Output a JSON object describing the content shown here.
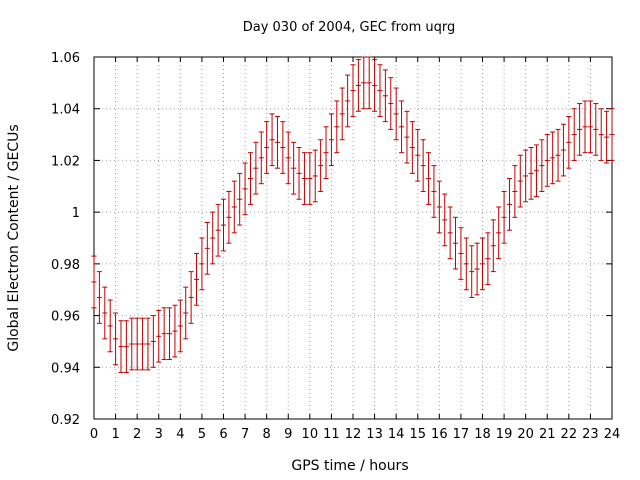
{
  "chart_data": {
    "type": "line",
    "title": "Day 030 of 2004, GEC from uqrg",
    "xlabel": "GPS time / hours",
    "ylabel": "Global Electron Content / GECUs",
    "xlim": [
      0,
      24
    ],
    "ylim": [
      0.92,
      1.06
    ],
    "grid": true,
    "error_bar_color": "#c00000",
    "grid_color": "#a0a0a0",
    "x_ticks": [
      "0",
      "1",
      "2",
      "3",
      "4",
      "5",
      "6",
      "7",
      "8",
      "9",
      "10",
      "11",
      "12",
      "13",
      "14",
      "15",
      "16",
      "17",
      "18",
      "19",
      "20",
      "21",
      "22",
      "23",
      "24"
    ],
    "y_ticks": [
      "0.92",
      "0.94",
      "0.96",
      "0.98",
      "1",
      "1.02",
      "1.04",
      "1.06"
    ],
    "series": [
      {
        "name": "GEC",
        "x": [
          0,
          0.25,
          0.5,
          0.75,
          1,
          1.25,
          1.5,
          1.75,
          2,
          2.25,
          2.5,
          2.75,
          3,
          3.25,
          3.5,
          3.75,
          4,
          4.25,
          4.5,
          4.75,
          5,
          5.25,
          5.5,
          5.75,
          6,
          6.25,
          6.5,
          6.75,
          7,
          7.25,
          7.5,
          7.75,
          8,
          8.25,
          8.5,
          8.75,
          9,
          9.25,
          9.5,
          9.75,
          10,
          10.25,
          10.5,
          10.75,
          11,
          11.25,
          11.5,
          11.75,
          12,
          12.25,
          12.5,
          12.75,
          13,
          13.25,
          13.5,
          13.75,
          14,
          14.25,
          14.5,
          14.75,
          15,
          15.25,
          15.5,
          15.75,
          16,
          16.25,
          16.5,
          16.75,
          17,
          17.25,
          17.5,
          17.75,
          18,
          18.25,
          18.5,
          18.75,
          19,
          19.25,
          19.5,
          19.75,
          20,
          20.25,
          20.5,
          20.75,
          21,
          21.25,
          21.5,
          21.75,
          22,
          22.25,
          22.5,
          22.75,
          23,
          23.25,
          23.5,
          23.75,
          24
        ],
        "y": [
          0.973,
          0.967,
          0.961,
          0.956,
          0.951,
          0.948,
          0.948,
          0.949,
          0.949,
          0.949,
          0.949,
          0.95,
          0.952,
          0.953,
          0.953,
          0.954,
          0.956,
          0.961,
          0.967,
          0.974,
          0.98,
          0.986,
          0.99,
          0.993,
          0.995,
          0.998,
          1.002,
          1.005,
          1.009,
          1.013,
          1.017,
          1.021,
          1.025,
          1.028,
          1.027,
          1.025,
          1.021,
          1.017,
          1.015,
          1.013,
          1.013,
          1.014,
          1.018,
          1.023,
          1.028,
          1.033,
          1.038,
          1.043,
          1.047,
          1.049,
          1.05,
          1.05,
          1.049,
          1.047,
          1.045,
          1.042,
          1.038,
          1.033,
          1.029,
          1.025,
          1.022,
          1.018,
          1.013,
          1.008,
          1.002,
          0.997,
          0.992,
          0.988,
          0.984,
          0.98,
          0.977,
          0.978,
          0.98,
          0.982,
          0.987,
          0.992,
          0.998,
          1.003,
          1.008,
          1.012,
          1.014,
          1.015,
          1.016,
          1.018,
          1.02,
          1.021,
          1.022,
          1.024,
          1.027,
          1.03,
          1.032,
          1.033,
          1.033,
          1.032,
          1.03,
          1.029,
          1.03
        ],
        "errors": [
          0.01,
          0.01,
          0.01,
          0.01,
          0.01,
          0.01,
          0.01,
          0.01,
          0.01,
          0.01,
          0.01,
          0.01,
          0.01,
          0.01,
          0.01,
          0.01,
          0.01,
          0.01,
          0.01,
          0.01,
          0.01,
          0.01,
          0.01,
          0.01,
          0.01,
          0.01,
          0.01,
          0.01,
          0.01,
          0.01,
          0.01,
          0.01,
          0.01,
          0.01,
          0.01,
          0.01,
          0.01,
          0.01,
          0.01,
          0.01,
          0.01,
          0.01,
          0.01,
          0.01,
          0.01,
          0.01,
          0.01,
          0.01,
          0.01,
          0.01,
          0.01,
          0.01,
          0.01,
          0.01,
          0.01,
          0.01,
          0.01,
          0.01,
          0.01,
          0.01,
          0.01,
          0.01,
          0.01,
          0.01,
          0.01,
          0.01,
          0.01,
          0.01,
          0.01,
          0.01,
          0.01,
          0.01,
          0.01,
          0.01,
          0.01,
          0.01,
          0.01,
          0.01,
          0.01,
          0.01,
          0.01,
          0.01,
          0.01,
          0.01,
          0.01,
          0.01,
          0.01,
          0.01,
          0.01,
          0.01,
          0.01,
          0.01,
          0.01,
          0.01,
          0.01,
          0.01,
          0.01
        ]
      }
    ]
  }
}
